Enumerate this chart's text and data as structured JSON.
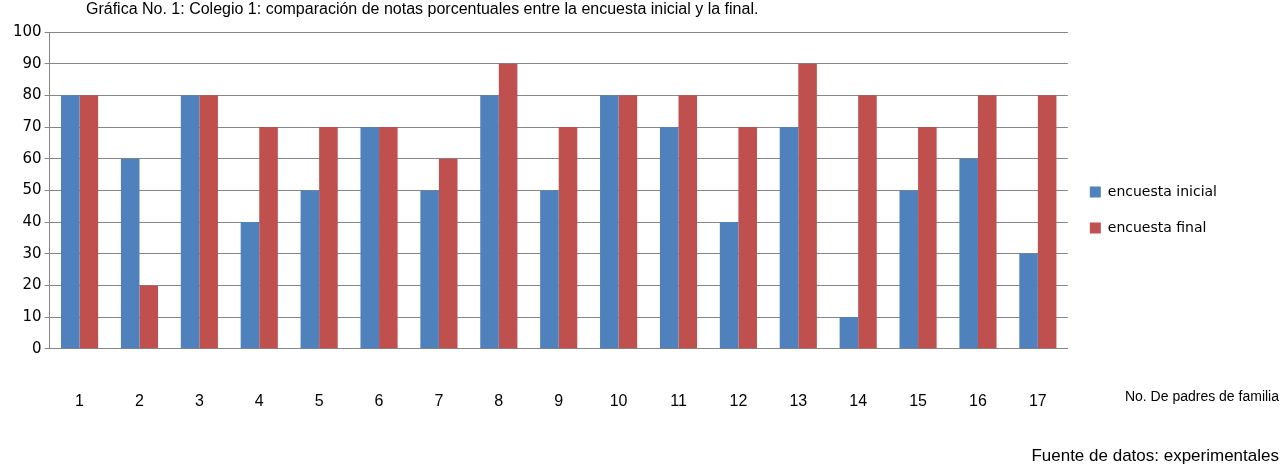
{
  "chart_data": {
    "type": "bar",
    "title": "Gráfica No. 1: Colegio 1: comparación de notas porcentuales entre la encuesta inicial y la final.",
    "xlabel": "No. De padres de familia",
    "annotations": [
      "Fuente de datos: experimentales"
    ],
    "categories": [
      "1",
      "2",
      "3",
      "4",
      "5",
      "6",
      "7",
      "8",
      "9",
      "10",
      "11",
      "12",
      "13",
      "14",
      "15",
      "16",
      "17"
    ],
    "series": [
      {
        "name": "encuesta inicial",
        "color": "#4f81bd",
        "values": [
          80,
          60,
          80,
          40,
          50,
          70,
          50,
          80,
          50,
          80,
          70,
          40,
          70,
          10,
          50,
          60,
          30
        ]
      },
      {
        "name": "encuesta final",
        "color": "#c0504d",
        "values": [
          80,
          20,
          80,
          70,
          70,
          70,
          60,
          90,
          70,
          80,
          80,
          70,
          90,
          80,
          70,
          80,
          80
        ]
      }
    ],
    "ylim": [
      0,
      100
    ],
    "yticks": [
      0,
      10,
      20,
      30,
      40,
      50,
      60,
      70,
      80,
      90,
      100
    ],
    "grid": "y",
    "legend": "right"
  }
}
